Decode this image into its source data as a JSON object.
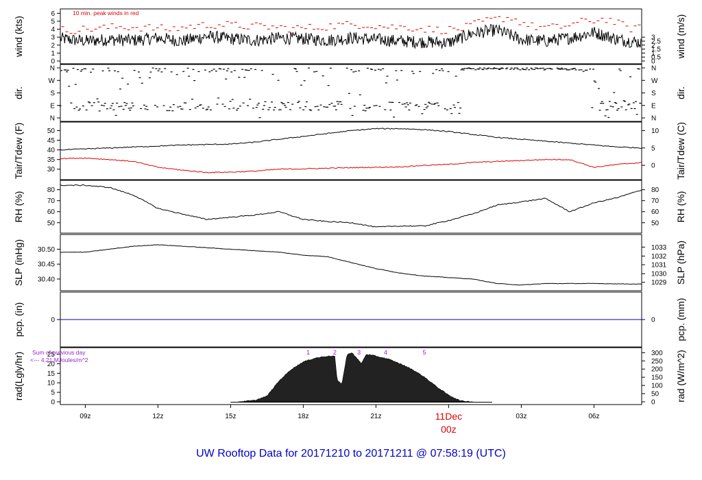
{
  "title": "UW Rooftop Data for 20171210  to  20171211 @ 07:58:19  (UTC)",
  "x_axis": {
    "ticks": [
      "09z",
      "12z",
      "15z",
      "18z",
      "21z",
      "00z",
      "03z",
      "06z"
    ],
    "tick_hours": [
      9,
      12,
      15,
      18,
      21,
      24,
      27,
      30
    ],
    "date_label": "11Dec",
    "range_hours": [
      7.97,
      31.97
    ]
  },
  "colors": {
    "peak": "#e00000",
    "dew": "#e00000",
    "pcp": "#0000cc",
    "annot": "#9a1fd4",
    "title": "#0000cc",
    "date": "#e00000"
  },
  "chart_data": [
    {
      "type": "line",
      "panel": "wind",
      "ylabel_left": "wind (kts)",
      "ylabel_right": "wind (m/s)",
      "left_ticks": [
        0,
        1,
        2,
        3,
        4,
        5,
        6
      ],
      "right_ticks": [
        "0",
        "0.5",
        "1",
        "1.5",
        "2",
        "2.5",
        "3"
      ],
      "right_tick_values": [
        0,
        0.5,
        1,
        1.5,
        2,
        2.5,
        3
      ],
      "ylim": [
        0,
        6.2
      ],
      "annotation": "10 min. peak winds in red",
      "series": [
        {
          "name": "wind",
          "x": [
            8,
            9,
            10,
            11,
            12,
            13,
            14,
            15,
            16,
            17,
            18,
            19,
            20,
            21,
            22,
            23,
            24,
            25,
            26,
            27,
            28,
            29,
            30,
            31,
            32
          ],
          "y": [
            2.8,
            2.5,
            2.7,
            2.6,
            2.9,
            2.5,
            3.1,
            2.8,
            2.6,
            2.9,
            2.8,
            2.6,
            2.9,
            2.7,
            2.5,
            2.4,
            2.3,
            3.5,
            3.9,
            2.7,
            2.5,
            2.9,
            3.6,
            2.7,
            2.3
          ]
        },
        {
          "name": "peak",
          "x": [
            8.5,
            9.5,
            10.5,
            11.5,
            12.5,
            13.5,
            14.5,
            15.5,
            16.5,
            17.5,
            18.5,
            19.5,
            20.5,
            21.5,
            22.5,
            23.5,
            24.5,
            25.5,
            26.5,
            27.5,
            28.5,
            29.5,
            30.5,
            31.5
          ],
          "y": [
            3.9,
            4.1,
            4.3,
            4.2,
            4.0,
            4.4,
            4.6,
            4.4,
            4.3,
            4.1,
            4.2,
            4.5,
            4.6,
            4.3,
            4.2,
            3.9,
            4.0,
            5.0,
            5.5,
            4.3,
            4.2,
            4.9,
            5.3,
            4.1
          ]
        }
      ]
    },
    {
      "type": "scatter",
      "panel": "dir",
      "ylabel_left": "dir.",
      "ylabel_right": "dir.",
      "left_ticks": [
        "N",
        "W",
        "S",
        "E",
        "N"
      ],
      "right_ticks": [
        "N",
        "W",
        "S",
        "E",
        "N"
      ],
      "ylim": [
        0,
        360
      ]
    },
    {
      "type": "line",
      "panel": "temp",
      "ylabel_left": "Tair/Tdew (F)",
      "ylabel_right": "Tair/Tdew (C)",
      "left_ticks": [
        30,
        35,
        40,
        45,
        50
      ],
      "right_ticks": [
        "0",
        "5",
        "10"
      ],
      "right_tick_values": [
        32,
        41,
        50
      ],
      "ylim": [
        26,
        53
      ],
      "series": [
        {
          "name": "Tair",
          "x": [
            8,
            9,
            10,
            11,
            12,
            13,
            14,
            15,
            16,
            17,
            18,
            19,
            20,
            21,
            22,
            23,
            24,
            25,
            26,
            27,
            28,
            29,
            30,
            31,
            32
          ],
          "y": [
            40,
            40.5,
            41,
            41.5,
            42,
            42.5,
            42.8,
            43,
            44,
            45.5,
            47,
            48.5,
            50,
            51,
            51,
            50.5,
            49.5,
            48,
            46.5,
            45.5,
            44.5,
            43.5,
            42.5,
            41.5,
            41
          ]
        },
        {
          "name": "Tdew",
          "x": [
            8,
            9,
            10,
            11,
            12,
            13,
            14,
            15,
            16,
            17,
            18,
            19,
            20,
            21,
            22,
            23,
            24,
            25,
            26,
            27,
            28,
            29,
            30,
            31,
            32
          ],
          "y": [
            35.5,
            35.8,
            35,
            34,
            31,
            29.5,
            28.3,
            28.5,
            29,
            30,
            30.2,
            30.5,
            30.8,
            31,
            31.2,
            32,
            32.5,
            33.5,
            34,
            34.5,
            35,
            35,
            31,
            32.5,
            33.5
          ]
        }
      ]
    },
    {
      "type": "line",
      "panel": "rh",
      "ylabel_left": "RH (%)",
      "ylabel_right": "RH (%)",
      "left_ticks": [
        50,
        60,
        70,
        80
      ],
      "right_ticks": [
        "50",
        "60",
        "70",
        "80"
      ],
      "right_tick_values": [
        50,
        60,
        70,
        80
      ],
      "ylim": [
        43,
        86
      ],
      "series": [
        {
          "name": "RH",
          "x": [
            8,
            9,
            10,
            11,
            12,
            13,
            14,
            15,
            16,
            17,
            18,
            19,
            20,
            21,
            22,
            23,
            24,
            25,
            26,
            27,
            28,
            29,
            30,
            31,
            32
          ],
          "y": [
            84,
            84,
            82,
            75,
            63,
            58,
            53,
            55,
            57,
            60,
            53,
            51,
            50,
            46,
            47,
            47,
            52,
            58,
            66,
            69,
            72,
            60,
            68,
            73,
            80
          ]
        }
      ]
    },
    {
      "type": "line",
      "panel": "slp",
      "ylabel_left": "SLP (inHg)",
      "ylabel_right": "SLP (hPa)",
      "left_ticks": [
        "30.40",
        "30.45",
        "30.50"
      ],
      "left_tick_values": [
        30.4,
        30.45,
        30.5
      ],
      "right_ticks": [
        "1029",
        "1030",
        "1031",
        "1032",
        "1033"
      ],
      "right_tick_values": [
        30.389,
        30.418,
        30.448,
        30.477,
        30.507
      ],
      "ylim": [
        30.37,
        30.54
      ],
      "series": [
        {
          "name": "SLP",
          "x": [
            8,
            9,
            10,
            11,
            12,
            13,
            14,
            15,
            16,
            17,
            18,
            19,
            20,
            21,
            22,
            23,
            24,
            25,
            26,
            27,
            28,
            29,
            30,
            31,
            32
          ],
          "y": [
            30.49,
            30.49,
            30.5,
            30.51,
            30.515,
            30.51,
            30.505,
            30.5,
            30.495,
            30.49,
            30.48,
            30.475,
            30.455,
            30.435,
            30.42,
            30.41,
            30.405,
            30.4,
            30.385,
            30.38,
            30.385,
            30.385,
            30.385,
            30.384,
            30.383
          ]
        }
      ]
    },
    {
      "type": "line",
      "panel": "pcp",
      "ylabel_left": "pcp. (in)",
      "ylabel_right": "pcp. (mm)",
      "left_ticks": [
        0
      ],
      "right_ticks": [
        "0"
      ],
      "right_tick_values": [
        0
      ],
      "ylim": [
        -1,
        1
      ],
      "series": [
        {
          "name": "pcp",
          "x": [
            8,
            32
          ],
          "y": [
            0,
            0
          ]
        }
      ]
    },
    {
      "type": "area",
      "panel": "rad",
      "ylabel_left": "rad(Lgly/hr)",
      "ylabel_right": "rad (W/m^2)",
      "left_ticks": [
        0,
        5,
        10,
        15,
        20,
        25
      ],
      "right_ticks": [
        "0",
        "50",
        "100",
        "150",
        "200",
        "250",
        "300"
      ],
      "right_tick_values": [
        0,
        4.3,
        8.6,
        12.9,
        17.2,
        21.5,
        25.8
      ],
      "ylim": [
        0,
        27
      ],
      "annotation_lines": [
        "Sum of previous day",
        "<--- 4.21 MJoules/m^2"
      ],
      "marker_labels": [
        "1",
        "2",
        "3",
        "4",
        "5"
      ],
      "marker_hours": [
        18.2,
        19.3,
        20.3,
        21.4,
        23
      ],
      "series": [
        {
          "name": "radiation",
          "x": [
            15.3,
            16,
            16.5,
            17,
            17.5,
            18,
            18.5,
            19,
            19.3,
            19.4,
            19.6,
            19.8,
            20,
            20.4,
            20.6,
            21,
            21.5,
            22,
            22.5,
            23,
            23.5,
            24,
            24.5,
            25
          ],
          "y": [
            0,
            0.8,
            3,
            11,
            17,
            21,
            23,
            24,
            24,
            11,
            9.5,
            24.5,
            26,
            20,
            25,
            24,
            22.5,
            20,
            17,
            13,
            8,
            3.5,
            0.5,
            0
          ]
        }
      ]
    }
  ]
}
